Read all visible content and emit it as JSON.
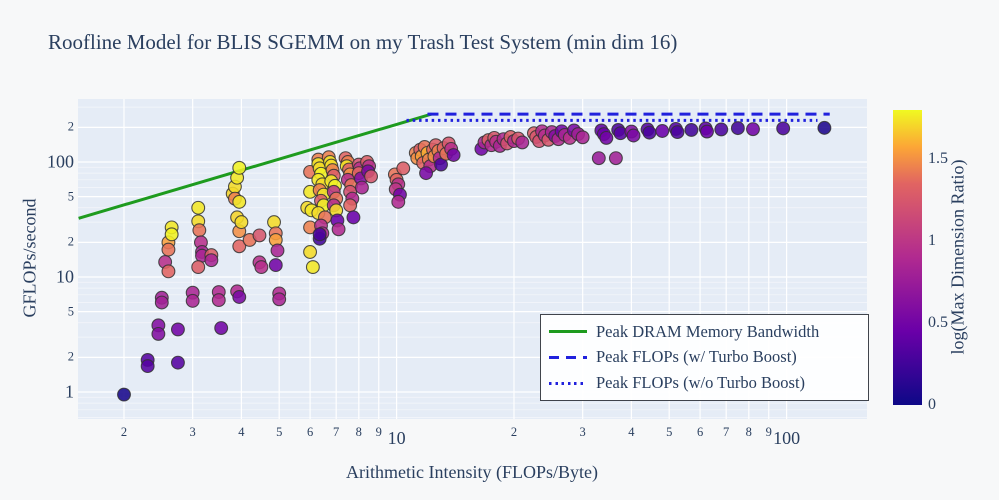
{
  "title": "Roofline Model for BLIS SGEMM on my Trash Test System (min dim 16)",
  "xaxis": {
    "label": "Arithmetic Intensity (FLOPs/Byte)",
    "scale": "log",
    "ticks": [
      [
        2,
        "2",
        0
      ],
      [
        3,
        "3",
        0
      ],
      [
        4,
        "4",
        0
      ],
      [
        5,
        "5",
        0
      ],
      [
        6,
        "6",
        0
      ],
      [
        7,
        "7",
        0
      ],
      [
        8,
        "8",
        0
      ],
      [
        9,
        "9",
        0
      ],
      [
        10,
        "10",
        1
      ],
      [
        20,
        "2",
        0
      ],
      [
        30,
        "3",
        0
      ],
      [
        40,
        "4",
        0
      ],
      [
        50,
        "5",
        0
      ],
      [
        60,
        "6",
        0
      ],
      [
        70,
        "7",
        0
      ],
      [
        80,
        "8",
        0
      ],
      [
        90,
        "9",
        0
      ],
      [
        100,
        "100",
        1
      ]
    ]
  },
  "yaxis": {
    "label": "GFLOPs/second",
    "scale": "log",
    "ticks": [
      [
        1,
        "1",
        1
      ],
      [
        2,
        "2",
        0
      ],
      [
        5,
        "5",
        0
      ],
      [
        10,
        "10",
        1
      ],
      [
        20,
        "2",
        0
      ],
      [
        50,
        "5",
        0
      ],
      [
        100,
        "100",
        1
      ],
      [
        200,
        "2",
        0
      ]
    ],
    "minor_gridlines": [
      0.6,
      0.7,
      0.8,
      0.9,
      3,
      4,
      6,
      7,
      8,
      9,
      30,
      40,
      60,
      70,
      80,
      90,
      300
    ]
  },
  "legend": {
    "items": [
      {
        "label": "Peak DRAM Memory Bandwidth",
        "style": "solid",
        "color": "#1e9b1e"
      },
      {
        "label": "Peak FLOPs (w/ Turbo Boost)",
        "style": "dash",
        "color": "#2121dd"
      },
      {
        "label": "Peak FLOPs (w/o Turbo Boost)",
        "style": "dot",
        "color": "#2121dd"
      }
    ]
  },
  "colorbar": {
    "label": "log(Max Dimension Ratio)",
    "vmin": 0,
    "vmax": 1.8,
    "ticks": [
      [
        0,
        "0"
      ],
      [
        0.5,
        "0.5"
      ],
      [
        1,
        "1"
      ],
      [
        1.5,
        "1.5"
      ]
    ],
    "colormap": "plasma",
    "stops": [
      [
        0,
        "#0d0887"
      ],
      [
        0.25,
        "#6a00a8"
      ],
      [
        0.5,
        "#b12a90"
      ],
      [
        0.75,
        "#e16462"
      ],
      [
        0.875,
        "#fca636"
      ],
      [
        1,
        "#f0f921"
      ]
    ]
  },
  "colors": {
    "page_bg": "#f7f8f9",
    "plot_bg": "#e5ecf6",
    "grid": "#ffffff",
    "text": "#2a3f5f",
    "green": "#1e9b1e",
    "blue": "#2121dd",
    "point_stroke": "#333333"
  },
  "chart_data": {
    "type": "scatter",
    "title": "Roofline Model for BLIS SGEMM on my Trash Test System (min dim 16)",
    "xlabel": "Arithmetic Intensity (FLOPs/Byte)",
    "ylabel": "GFLOPs/second",
    "color_label": "log(Max Dimension Ratio)",
    "x_scale": "log",
    "y_scale": "log",
    "xlim": [
      1.53,
      160
    ],
    "ylim": [
      0.58,
      353
    ],
    "grid": true,
    "legend_position": "bottom-right",
    "lines": [
      {
        "name": "Peak DRAM Memory Bandwidth",
        "style": "solid",
        "color": "#1e9b1e",
        "x": [
          1.53,
          12.3
        ],
        "y": [
          32.4,
          261
        ]
      },
      {
        "name": "Peak FLOPs (w/ Turbo Boost)",
        "style": "dash",
        "color": "#2121dd",
        "x": [
          12.0,
          129
        ],
        "y": [
          261,
          261
        ]
      },
      {
        "name": "Peak FLOPs (w/o Turbo Boost)",
        "style": "dot",
        "color": "#2121dd",
        "x": [
          10.6,
          120
        ],
        "y": [
          230,
          230
        ]
      }
    ],
    "points_format": [
      "arithmetic_intensity",
      "gflops",
      "log_max_dim_ratio"
    ],
    "points": [
      [
        2.0,
        0.95,
        0.05
      ],
      [
        2.3,
        1.9,
        0.35
      ],
      [
        2.3,
        1.68,
        0.35
      ],
      [
        2.45,
        3.8,
        0.6
      ],
      [
        2.45,
        3.2,
        0.6
      ],
      [
        2.5,
        6.6,
        0.8
      ],
      [
        2.5,
        6.0,
        0.8
      ],
      [
        2.55,
        13.5,
        0.95
      ],
      [
        2.6,
        20,
        1.55
      ],
      [
        2.6,
        17.3,
        1.4
      ],
      [
        2.6,
        11.2,
        1.35
      ],
      [
        2.65,
        27,
        1.75
      ],
      [
        2.65,
        23.5,
        1.78
      ],
      [
        2.75,
        3.5,
        0.5
      ],
      [
        2.75,
        1.8,
        0.35
      ],
      [
        3.0,
        7.3,
        0.85
      ],
      [
        3.0,
        6.2,
        0.85
      ],
      [
        3.1,
        40,
        1.75
      ],
      [
        3.1,
        30.5,
        1.72
      ],
      [
        3.12,
        25.5,
        1.4
      ],
      [
        3.15,
        20,
        0.95
      ],
      [
        3.17,
        16.5,
        0.85
      ],
      [
        3.17,
        15.3,
        0.85
      ],
      [
        3.1,
        12.2,
        1.3
      ],
      [
        3.35,
        15.5,
        1.3
      ],
      [
        3.35,
        14.0,
        0.85
      ],
      [
        3.5,
        7.4,
        0.9
      ],
      [
        3.5,
        6.3,
        0.9
      ],
      [
        3.55,
        3.6,
        0.5
      ],
      [
        3.8,
        53,
        1.7
      ],
      [
        3.85,
        61,
        1.72
      ],
      [
        3.85,
        48,
        1.45
      ],
      [
        3.9,
        73,
        1.75
      ],
      [
        3.9,
        33,
        1.7
      ],
      [
        3.95,
        89,
        1.78
      ],
      [
        3.95,
        45,
        1.75
      ],
      [
        3.95,
        25,
        1.5
      ],
      [
        4.0,
        30,
        1.72
      ],
      [
        3.95,
        18.5,
        1.35
      ],
      [
        3.9,
        7.5,
        0.9
      ],
      [
        3.95,
        6.7,
        0.55
      ],
      [
        4.2,
        21,
        1.4
      ],
      [
        4.45,
        23,
        1.25
      ],
      [
        4.45,
        13.4,
        0.95
      ],
      [
        4.5,
        12.2,
        0.95
      ],
      [
        4.85,
        30,
        1.72
      ],
      [
        4.9,
        24,
        1.4
      ],
      [
        4.9,
        21,
        1.55
      ],
      [
        4.95,
        17,
        0.85
      ],
      [
        4.9,
        12.7,
        0.5
      ],
      [
        5.0,
        7.2,
        0.9
      ],
      [
        5.0,
        6.4,
        0.85
      ],
      [
        6.0,
        82,
        1.4
      ],
      [
        6.0,
        55,
        1.75
      ],
      [
        5.9,
        40,
        1.72
      ],
      [
        6.05,
        38,
        1.75
      ],
      [
        6.0,
        27,
        1.45
      ],
      [
        6.0,
        16.5,
        1.72
      ],
      [
        6.1,
        12.2,
        1.75
      ],
      [
        6.3,
        105,
        1.45
      ],
      [
        6.3,
        96,
        1.75
      ],
      [
        6.35,
        88,
        1.72
      ],
      [
        6.4,
        79,
        1.78
      ],
      [
        6.3,
        70,
        1.75
      ],
      [
        6.45,
        64,
        1.72
      ],
      [
        6.35,
        57,
        1.45
      ],
      [
        6.5,
        52,
        1.75
      ],
      [
        6.4,
        46,
        1.3
      ],
      [
        6.5,
        42,
        1.78
      ],
      [
        6.3,
        36,
        1.72
      ],
      [
        6.55,
        33,
        1.4
      ],
      [
        6.4,
        28,
        0.95
      ],
      [
        6.45,
        24,
        0.9
      ],
      [
        6.35,
        21.5,
        0.25
      ],
      [
        6.35,
        23.5,
        0.3
      ],
      [
        6.7,
        110,
        1.45
      ],
      [
        6.75,
        100,
        1.75
      ],
      [
        6.8,
        93,
        1.72
      ],
      [
        6.85,
        85,
        1.45
      ],
      [
        6.9,
        76,
        1.3
      ],
      [
        6.8,
        68,
        1.75
      ],
      [
        6.95,
        62,
        1.78
      ],
      [
        6.9,
        55,
        1.0
      ],
      [
        7.0,
        48,
        1.4
      ],
      [
        6.9,
        42,
        0.95
      ],
      [
        7.0,
        38,
        1.72
      ],
      [
        7.05,
        31,
        0.45
      ],
      [
        7.1,
        26,
        0.9
      ],
      [
        7.4,
        108,
        1.35
      ],
      [
        7.5,
        100,
        1.45
      ],
      [
        7.45,
        92,
        1.75
      ],
      [
        7.55,
        86,
        1.3
      ],
      [
        7.6,
        78,
        1.5
      ],
      [
        7.5,
        70,
        0.95
      ],
      [
        7.65,
        63,
        1.4
      ],
      [
        7.6,
        55,
        1.2
      ],
      [
        7.7,
        48,
        0.9
      ],
      [
        7.6,
        42,
        1.35
      ],
      [
        7.75,
        33,
        0.45
      ],
      [
        8.0,
        95,
        1.2
      ],
      [
        8.05,
        88,
        0.95
      ],
      [
        8.0,
        80,
        1.35
      ],
      [
        8.1,
        72,
        0.6
      ],
      [
        8.15,
        60,
        0.85
      ],
      [
        8.4,
        100,
        1.3
      ],
      [
        8.5,
        92,
        0.95
      ],
      [
        8.45,
        83,
        0.55
      ],
      [
        8.6,
        75,
        1.25
      ],
      [
        9.9,
        78,
        1.4
      ],
      [
        10.0,
        70,
        1.35
      ],
      [
        10.1,
        64,
        0.95
      ],
      [
        9.95,
        58,
        1.0
      ],
      [
        10.2,
        52,
        0.5
      ],
      [
        10.1,
        45,
        0.9
      ],
      [
        10.4,
        88,
        1.3
      ],
      [
        11.2,
        120,
        1.45
      ],
      [
        11.3,
        108,
        1.5
      ],
      [
        11.5,
        128,
        1.3
      ],
      [
        11.6,
        112,
        1.55
      ],
      [
        11.7,
        98,
        1.35
      ],
      [
        11.8,
        135,
        1.4
      ],
      [
        12.0,
        120,
        1.6
      ],
      [
        12.1,
        105,
        1.45
      ],
      [
        12.2,
        92,
        0.95
      ],
      [
        12.4,
        128,
        1.35
      ],
      [
        12.5,
        112,
        1.5
      ],
      [
        12.6,
        140,
        1.3
      ],
      [
        12.8,
        125,
        1.45
      ],
      [
        12.9,
        108,
        0.9
      ],
      [
        13.0,
        95,
        0.3
      ],
      [
        13.2,
        132,
        1.35
      ],
      [
        13.4,
        118,
        1.4
      ],
      [
        13.6,
        145,
        1.25
      ],
      [
        13.8,
        130,
        0.95
      ],
      [
        14.0,
        115,
        0.5
      ],
      [
        11.9,
        80,
        0.55
      ],
      [
        16.5,
        130,
        0.5
      ],
      [
        16.8,
        148,
        0.85
      ],
      [
        17.2,
        155,
        1.3
      ],
      [
        17.5,
        140,
        0.9
      ],
      [
        17.8,
        162,
        1.25
      ],
      [
        18.0,
        150,
        0.95
      ],
      [
        18.4,
        138,
        0.85
      ],
      [
        18.8,
        158,
        0.9
      ],
      [
        19.2,
        145,
        1.2
      ],
      [
        19.6,
        165,
        1.3
      ],
      [
        20.0,
        152,
        0.9
      ],
      [
        20.5,
        160,
        1.25
      ],
      [
        21.0,
        148,
        0.85
      ],
      [
        22.5,
        178,
        1.3
      ],
      [
        22.8,
        165,
        1.25
      ],
      [
        23.2,
        152,
        1.2
      ],
      [
        23.6,
        185,
        0.9
      ],
      [
        24.0,
        170,
        0.95
      ],
      [
        24.5,
        156,
        1.25
      ],
      [
        25.0,
        182,
        0.85
      ],
      [
        25.5,
        168,
        0.6
      ],
      [
        26.0,
        158,
        0.9
      ],
      [
        26.5,
        185,
        0.5
      ],
      [
        27.0,
        172,
        0.85
      ],
      [
        27.8,
        162,
        0.95
      ],
      [
        28.5,
        188,
        0.55
      ],
      [
        29.2,
        175,
        0.8
      ],
      [
        30.0,
        164,
        0.85
      ],
      [
        33,
        108,
        0.75
      ],
      [
        36.5,
        108,
        0.8
      ],
      [
        33.5,
        188,
        0.4
      ],
      [
        34,
        175,
        0.45
      ],
      [
        34.5,
        162,
        0.5
      ],
      [
        37,
        190,
        0.3
      ],
      [
        37.5,
        178,
        0.35
      ],
      [
        40,
        184,
        0.6
      ],
      [
        40.5,
        170,
        0.55
      ],
      [
        44,
        192,
        0.35
      ],
      [
        44.5,
        180,
        0.3
      ],
      [
        48,
        186,
        0.45
      ],
      [
        52,
        194,
        0.35
      ],
      [
        52.5,
        182,
        0.3
      ],
      [
        57,
        190,
        0.25
      ],
      [
        62,
        196,
        0.4
      ],
      [
        62.5,
        184,
        0.45
      ],
      [
        68,
        192,
        0.3
      ],
      [
        75,
        197,
        0.25
      ],
      [
        82,
        193,
        0.5
      ],
      [
        98,
        196,
        0.3
      ],
      [
        125,
        198,
        0.08
      ]
    ]
  }
}
